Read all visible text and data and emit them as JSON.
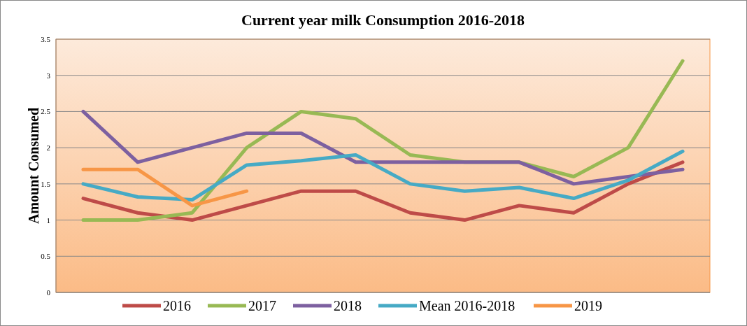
{
  "chart_data": {
    "type": "line",
    "title": "Current year milk Consumption 2016-2018",
    "ylabel": "Amount Consumed",
    "categories": [
      null,
      null,
      null,
      null,
      null,
      null,
      null,
      null,
      null,
      null,
      null,
      null
    ],
    "series": [
      {
        "name": "2016",
        "color": "#be4b48",
        "values": [
          1.3,
          1.1,
          1.0,
          1.2,
          1.4,
          1.4,
          1.1,
          1.0,
          1.2,
          1.1,
          1.5,
          1.8
        ]
      },
      {
        "name": "2017",
        "color": "#98b954",
        "values": [
          1.0,
          1.0,
          1.1,
          2.0,
          2.5,
          2.4,
          1.9,
          1.8,
          1.8,
          1.6,
          2.0,
          3.2
        ]
      },
      {
        "name": "2018",
        "color": "#7d60a0",
        "values": [
          2.5,
          1.8,
          2.0,
          2.2,
          2.2,
          1.8,
          1.8,
          1.8,
          1.8,
          1.5,
          1.6,
          1.7
        ]
      },
      {
        "name": "Mean 2016-2018",
        "color": "#46aac5",
        "values": [
          1.5,
          1.32,
          1.28,
          1.76,
          1.82,
          1.9,
          1.5,
          1.4,
          1.45,
          1.3,
          1.55,
          1.95
        ]
      },
      {
        "name": "2019",
        "color": "#f79646",
        "values": [
          1.7,
          1.7,
          1.2,
          1.4,
          null,
          null,
          null,
          null,
          null,
          null,
          null,
          null
        ]
      }
    ],
    "ylim": [
      0,
      3.5
    ],
    "yticks": [
      0,
      0.5,
      1,
      1.5,
      2,
      2.5,
      3,
      3.5
    ],
    "grid": "y",
    "legend": "bottom",
    "marker": "none",
    "line_style": "solid"
  }
}
